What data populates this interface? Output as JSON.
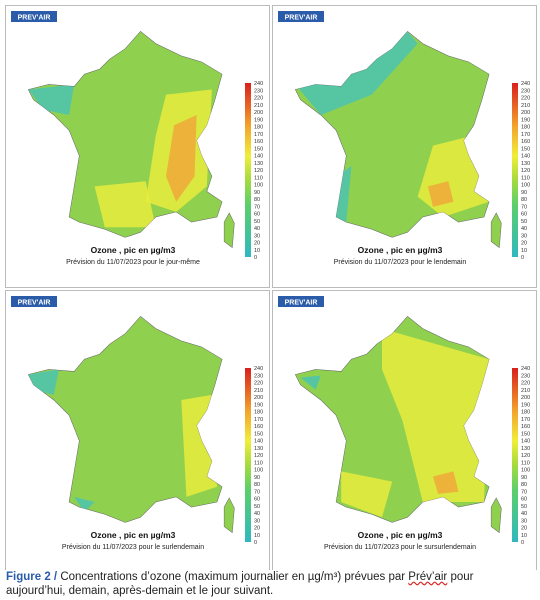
{
  "panels": [
    {
      "logo": "PREV'AIR",
      "title": "Ozone , pic en µg/m3",
      "subtitle": "Prévision du 11/07/2023 pour le jour-même"
    },
    {
      "logo": "PREV'AIR",
      "title": "Ozone , pic en µg/m3",
      "subtitle": "Prévision du 11/07/2023 pour le lendemain"
    },
    {
      "logo": "PREV'AIR",
      "title": "Ozone , pic en µg/m3",
      "subtitle": "Prévision du 11/07/2023 pour le surlendemain"
    },
    {
      "logo": "PREV'AIR",
      "title": "Ozone , pic en µg/m3",
      "subtitle": "Prévision du 11/07/2023 pour le sursurlendemain"
    }
  ],
  "scale": {
    "ticks": [
      240,
      230,
      220,
      210,
      200,
      190,
      180,
      170,
      160,
      150,
      140,
      130,
      120,
      110,
      100,
      90,
      80,
      70,
      60,
      50,
      40,
      30,
      20,
      10,
      0
    ]
  },
  "caption": {
    "label": "Figure 2 /",
    "text_before": "Concentrations d’ozone (maximum journalier en µg/m³) prévues par ",
    "highlight": "Prév’air",
    "text_after": " pour aujourd’hui, demain, après-demain et le jour suivant."
  }
}
